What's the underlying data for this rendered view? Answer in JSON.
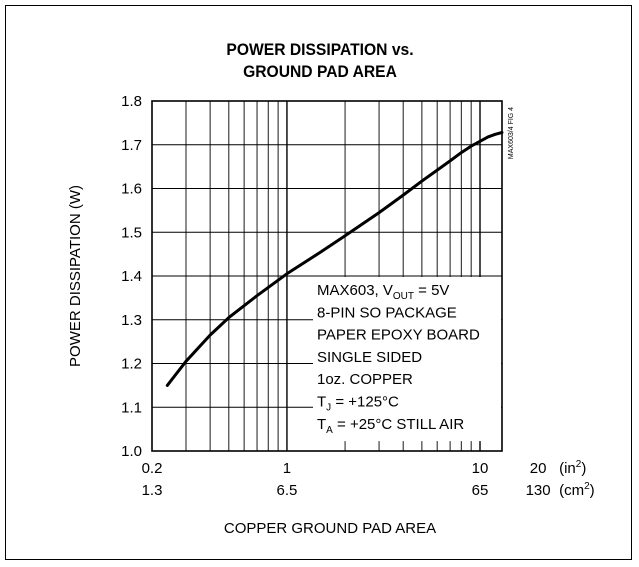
{
  "chart_data": {
    "type": "line",
    "title_lines": [
      "POWER DISSIPATION vs.",
      "GROUND PAD AREA"
    ],
    "ylabel": "POWER DISSIPATION (W)",
    "xlabel": "COPPER GROUND PAD AREA",
    "x_scale": "log",
    "xlim": [
      0.2,
      13
    ],
    "ylim": [
      1.0,
      1.8
    ],
    "grid": true,
    "y_ticks": [
      "1.0",
      "1.1",
      "1.2",
      "1.3",
      "1.4",
      "1.5",
      "1.6",
      "1.7",
      "1.8"
    ],
    "x_tick_values_in2": [
      0.2,
      1,
      10,
      20
    ],
    "x_tick_labels_in2": [
      "0.2",
      "1",
      "10",
      "20"
    ],
    "x_tick_labels_cm2": [
      "1.3",
      "6.5",
      "65",
      "130"
    ],
    "x_units_in2": "(in²)",
    "x_units_cm2": "(cm²)",
    "series": [
      {
        "x": [
          0.24,
          0.3,
          0.4,
          0.5,
          0.7,
          1.0,
          1.5,
          2.0,
          3.0,
          4.0,
          5.0,
          6.0,
          7.0,
          8.0,
          9.0,
          10.0,
          11.0,
          12.0,
          13.0
        ],
        "y": [
          1.15,
          1.205,
          1.265,
          1.305,
          1.355,
          1.405,
          1.455,
          1.492,
          1.545,
          1.585,
          1.617,
          1.642,
          1.663,
          1.682,
          1.697,
          1.708,
          1.718,
          1.724,
          1.728
        ]
      }
    ],
    "annotation_lines": [
      "MAX603, V_OUT = 5V",
      "8-PIN SO PACKAGE",
      "PAPER EPOXY BOARD",
      "SINGLE SIDED",
      "1oz. COPPER",
      "T_J = +125°C",
      "T_A = +25°C STILL AIR"
    ],
    "side_label": "MAX603/4 FIG 4"
  }
}
